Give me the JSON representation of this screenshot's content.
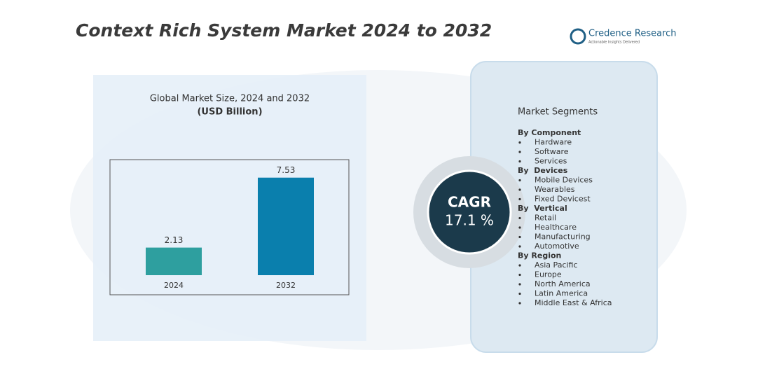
{
  "title": "Context Rich System Market 2024 to 2032",
  "logo": {
    "name": "Credence Research",
    "tagline": "Actionable Insights Delivered"
  },
  "chart_data": {
    "type": "bar",
    "title": "Global Market Size, 2024 and 2032",
    "subtitle": "(USD Billion)",
    "categories": [
      "2024",
      "2032"
    ],
    "values": [
      2.13,
      7.53
    ],
    "colors": [
      "#2e9f9f",
      "#0a7fad"
    ],
    "ylim": [
      0,
      8
    ]
  },
  "cagr": {
    "label": "CAGR",
    "value": "17.1 %"
  },
  "segments": {
    "title": "Market Segments",
    "groups": [
      {
        "heading": "By Component",
        "items": [
          "Hardware",
          "Software",
          "Services"
        ]
      },
      {
        "heading": "By  Devices",
        "items": [
          "Mobile Devices",
          "Wearables",
          "Fixed Devicest"
        ]
      },
      {
        "heading": "By  Vertical",
        "items": [
          "Retail",
          "Healthcare",
          "Manufacturing",
          "Automotive"
        ]
      },
      {
        "heading": "By Region",
        "items": [
          "Asia Pacific",
          "Europe",
          "North America",
          "Latin America",
          "Middle East & Africa"
        ]
      }
    ]
  }
}
